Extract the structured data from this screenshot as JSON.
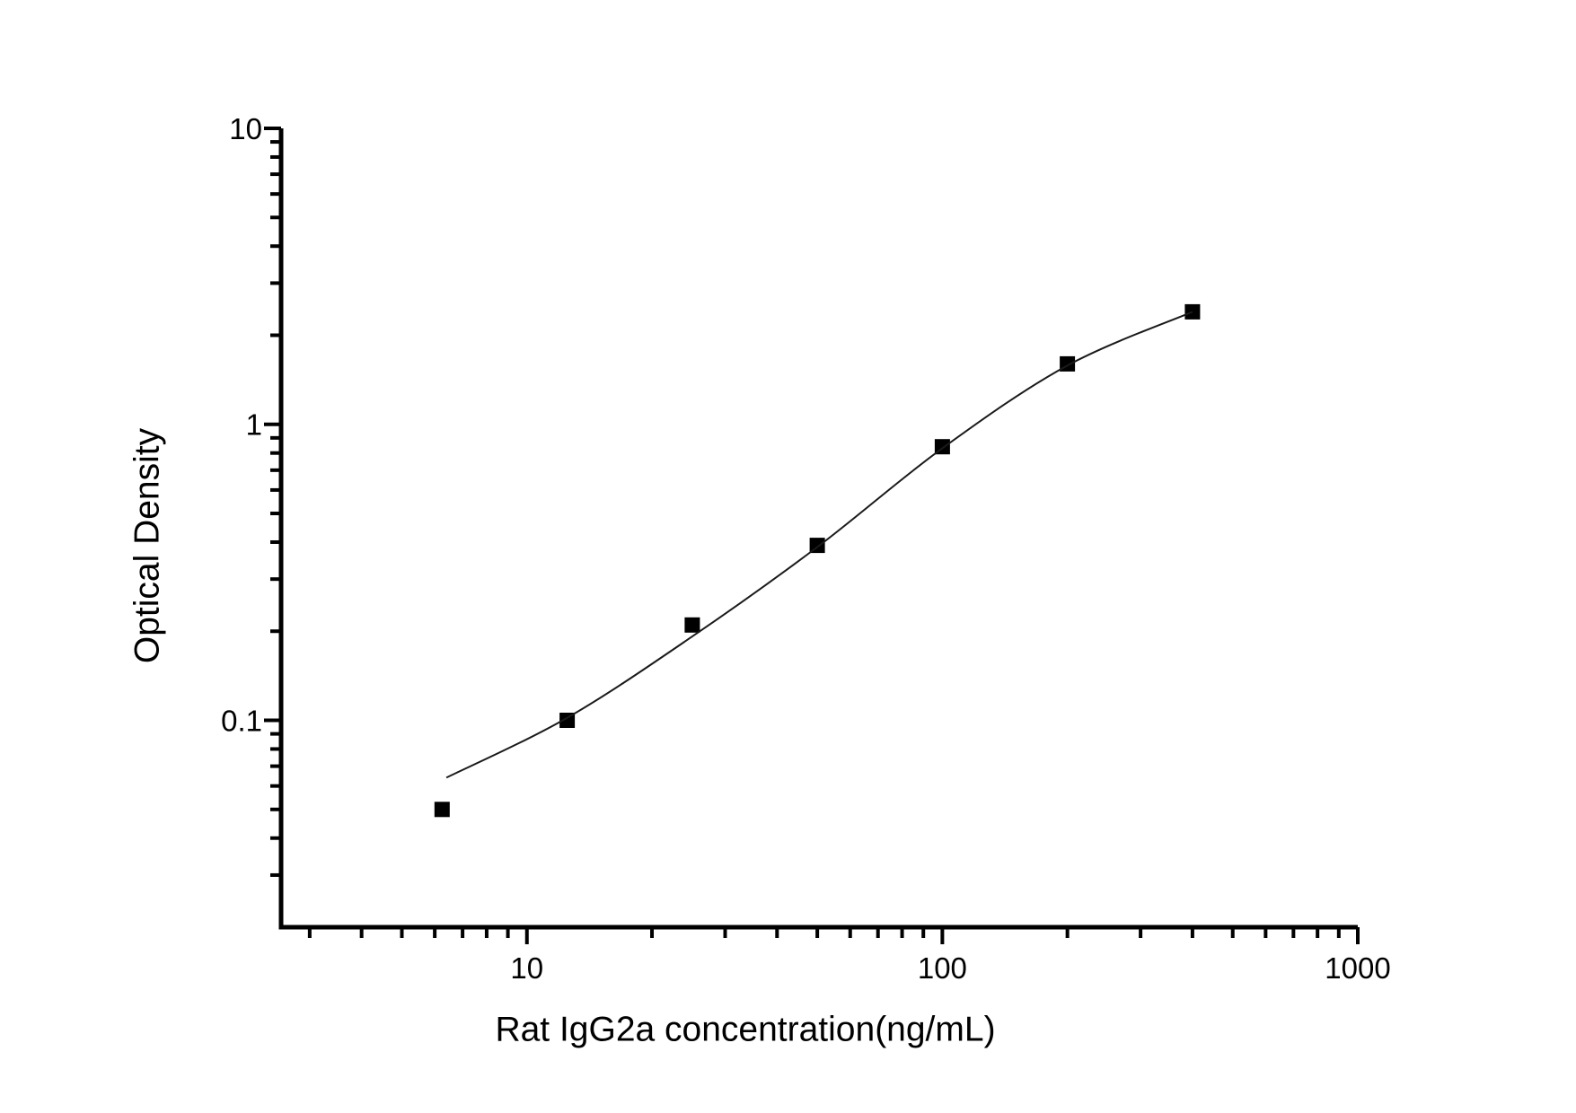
{
  "chart_data": {
    "type": "scatter",
    "title": "",
    "xlabel": "Rat IgG2a concentration(ng/mL)",
    "ylabel": "Optical Density",
    "x_scale": "log",
    "y_scale": "log",
    "xlim": [
      2.56,
      1000
    ],
    "ylim": [
      0.02,
      10
    ],
    "grid": false,
    "legend_position": "none",
    "background_color": "#ffffff",
    "axis_color": "#000000",
    "x_major_ticks": [
      10,
      100,
      1000
    ],
    "x_major_tick_labels": [
      "10",
      "100",
      "1000"
    ],
    "x_minor_ticks": [
      3,
      4,
      5,
      6,
      7,
      8,
      9,
      20,
      30,
      40,
      50,
      60,
      70,
      80,
      90,
      200,
      300,
      400,
      500,
      600,
      700,
      800,
      900
    ],
    "y_major_ticks": [
      0.1,
      1,
      10
    ],
    "y_major_tick_labels": [
      "0.1",
      "1",
      "10"
    ],
    "y_minor_ticks": [
      0.03,
      0.04,
      0.05,
      0.06,
      0.07,
      0.08,
      0.09,
      0.2,
      0.3,
      0.4,
      0.5,
      0.6,
      0.7,
      0.8,
      0.9,
      2,
      3,
      4,
      5,
      6,
      7,
      8,
      9
    ],
    "series": [
      {
        "name": "standard-data-points",
        "style": "markers",
        "marker": "filled-square",
        "color": "#000000",
        "x": [
          6.25,
          12.5,
          25,
          50,
          100,
          200,
          400
        ],
        "y": [
          0.05,
          0.1,
          0.21,
          0.39,
          0.84,
          1.6,
          2.4
        ]
      },
      {
        "name": "fitted-curve",
        "style": "line",
        "marker": "none",
        "color": "#1a1a1a",
        "x": [
          6.4,
          12.5,
          25,
          50,
          100,
          200,
          400
        ],
        "y": [
          0.064,
          0.102,
          0.192,
          0.385,
          0.83,
          1.58,
          2.4
        ]
      }
    ]
  }
}
